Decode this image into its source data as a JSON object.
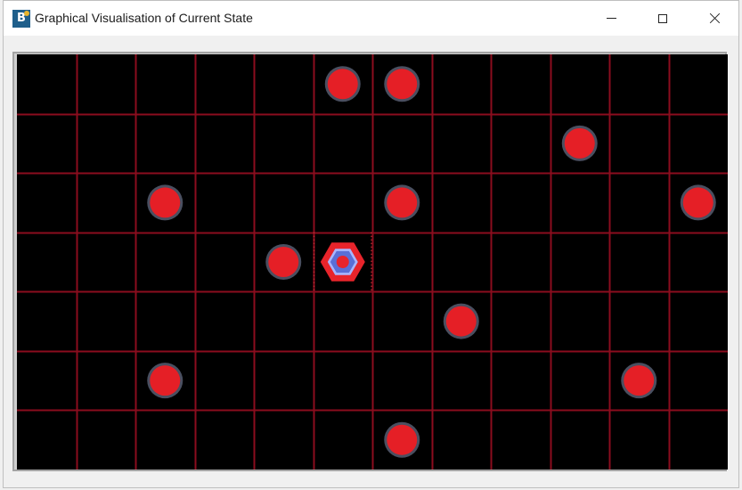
{
  "window": {
    "title": "Graphical Visualisation of Current State",
    "icon": "bc-app-icon",
    "buttons": [
      "minimize-icon",
      "maximize-icon",
      "close-icon"
    ]
  },
  "board": {
    "columns": 12,
    "rows": 7,
    "colors": {
      "background": "#000000",
      "grid_line": "#8b0d1e",
      "obstacle_fill": "#e51f26",
      "obstacle_ring": "#4a4f60",
      "agent_outer": "#e8242b",
      "agent_middle": "#5a6fd6",
      "agent_inner": "#e8242b",
      "agent_ring": "#a9b6ff",
      "highlight": "#d93a3a"
    },
    "obstacles": [
      {
        "col": 5,
        "row": 0
      },
      {
        "col": 6,
        "row": 0
      },
      {
        "col": 9,
        "row": 1
      },
      {
        "col": 2,
        "row": 2
      },
      {
        "col": 6,
        "row": 2
      },
      {
        "col": 11,
        "row": 2
      },
      {
        "col": 4,
        "row": 3
      },
      {
        "col": 7,
        "row": 4
      },
      {
        "col": 2,
        "row": 5
      },
      {
        "col": 10,
        "row": 5
      },
      {
        "col": 6,
        "row": 6
      }
    ],
    "agent": {
      "col": 5,
      "row": 3,
      "icon": "hexagon-agent-icon"
    }
  }
}
